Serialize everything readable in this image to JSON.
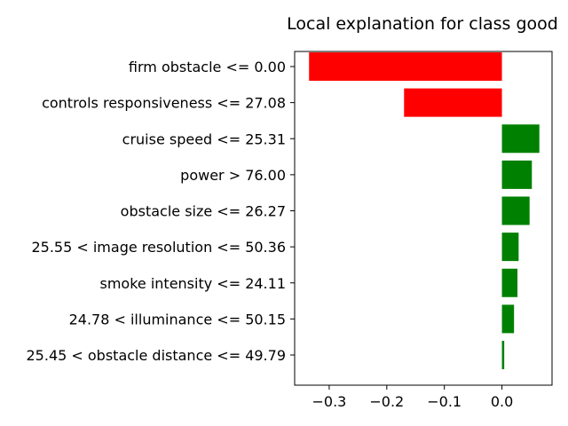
{
  "chart_data": {
    "type": "bar",
    "orientation": "horizontal",
    "title": "Local explanation for class good",
    "xlabel": "",
    "ylabel": "",
    "categories": [
      "firm obstacle <= 0.00",
      "controls responsiveness <= 27.08",
      "cruise speed <= 25.31",
      "power > 76.00",
      "obstacle size <= 26.27",
      "25.55 < image resolution <= 50.36",
      "smoke intensity <= 24.11",
      "24.78 < illuminance <= 50.15",
      "25.45 < obstacle distance <= 49.79"
    ],
    "values": [
      -0.335,
      -0.17,
      0.065,
      0.052,
      0.048,
      0.029,
      0.027,
      0.021,
      0.004
    ],
    "xlim": [
      -0.36,
      0.087
    ],
    "xticks": [
      -0.3,
      -0.2,
      -0.1,
      0.0
    ],
    "xtick_labels": [
      "−0.3",
      "−0.2",
      "−0.1",
      "0.0"
    ],
    "grid": false,
    "colors": {
      "positive": "#008000",
      "negative": "#ff0000"
    }
  }
}
